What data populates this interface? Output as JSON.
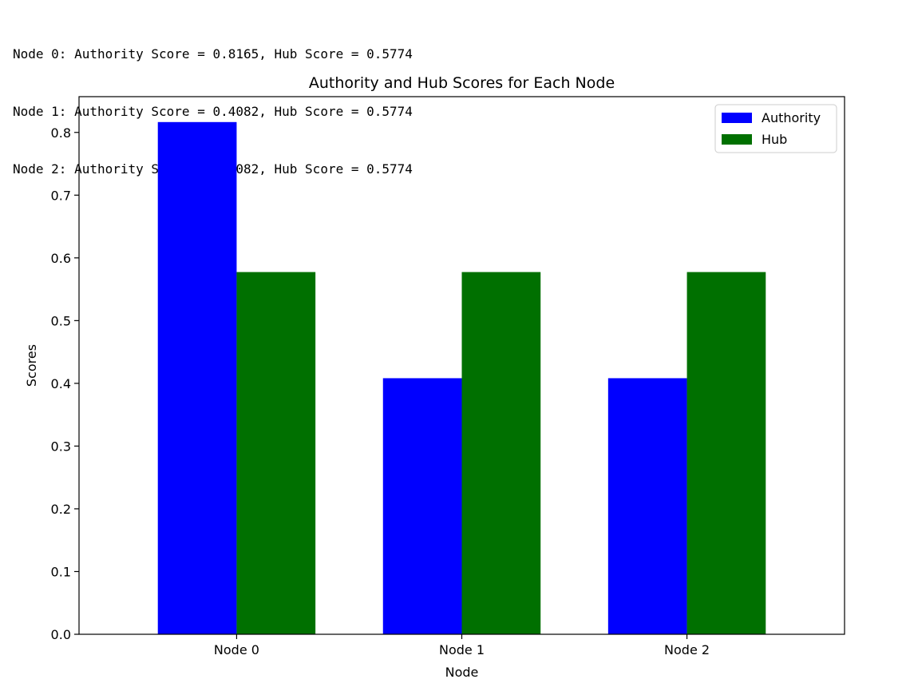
{
  "console": {
    "lines": [
      "Node 0: Authority Score = 0.8165, Hub Score = 0.5774",
      "Node 1: Authority Score = 0.4082, Hub Score = 0.5774",
      "Node 2: Authority Score = 0.4082, Hub Score = 0.5774"
    ]
  },
  "chart_data": {
    "type": "bar",
    "title": "Authority and Hub Scores for Each Node",
    "xlabel": "Node",
    "ylabel": "Scores",
    "categories": [
      "Node 0",
      "Node 1",
      "Node 2"
    ],
    "series": [
      {
        "name": "Authority",
        "values": [
          0.8165,
          0.4082,
          0.4082
        ],
        "color": "#0000ff"
      },
      {
        "name": "Hub",
        "values": [
          0.5774,
          0.5774,
          0.5774
        ],
        "color": "#007000"
      }
    ],
    "ylim": [
      0,
      0.857
    ],
    "yticks": [
      "0.0",
      "0.1",
      "0.2",
      "0.3",
      "0.4",
      "0.5",
      "0.6",
      "0.7",
      "0.8"
    ],
    "grid": false,
    "legend_position": "top-right"
  }
}
